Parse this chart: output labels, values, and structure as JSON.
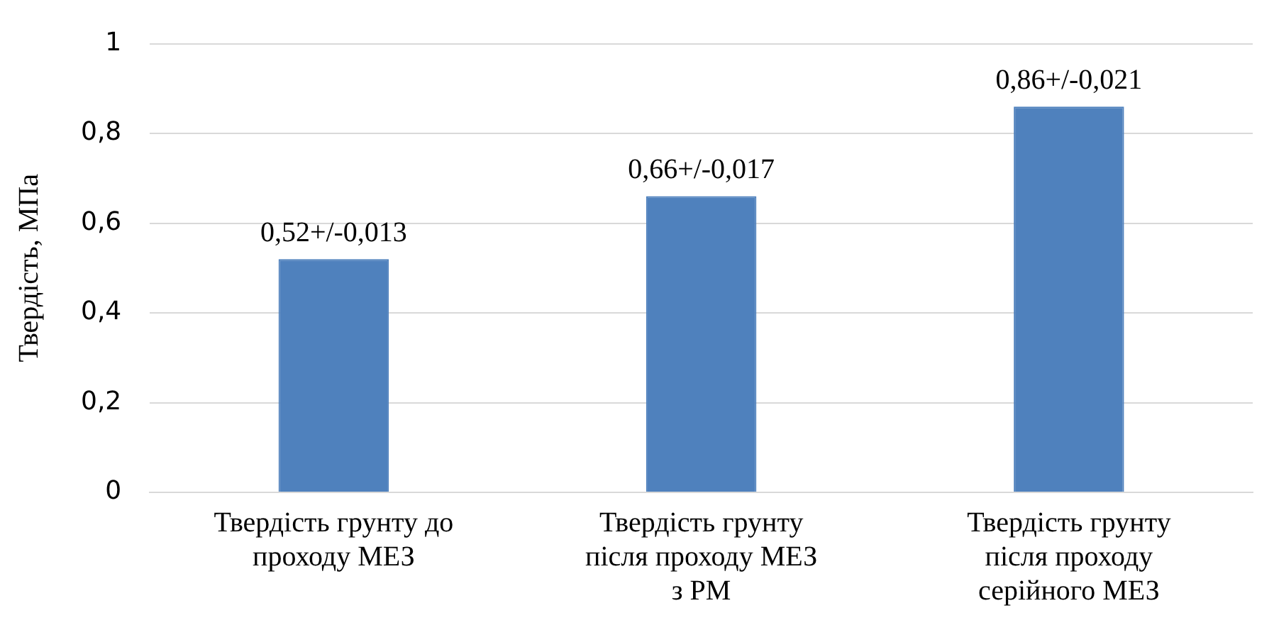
{
  "chart_data": {
    "type": "bar",
    "ylabel": "Твердість, МПа",
    "categories": [
      "Твердість грунту до проходу МЕЗ",
      "Твердість грунту після проходу МЕЗ з РМ",
      "Твердість грунту після проходу серійного МЕЗ"
    ],
    "values": [
      0.52,
      0.66,
      0.86
    ],
    "color": "#4f81bd",
    "value_labels": [
      "0,52+/-0,013",
      "0,66+/-0,017",
      "0,86+/-0,021"
    ],
    "ylim": [
      0,
      1
    ],
    "yticks": [
      0,
      {
        "value": 0.2,
        "label": "0,2"
      },
      {
        "value": 0.4,
        "label": "0,4"
      },
      {
        "value": 0.6,
        "label": "0,6"
      },
      {
        "value": 0.8,
        "label": "0,8"
      },
      1
    ],
    "grid": "y",
    "legend": false
  }
}
